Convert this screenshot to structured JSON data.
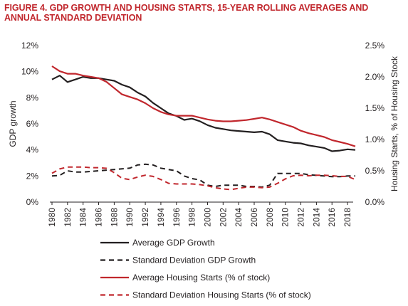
{
  "chart_data": {
    "type": "line",
    "title": "FIGURE 4. GDP GROWTH AND HOUSING STARTS, 15-YEAR ROLLING AVERAGES AND ANNUAL STANDARD DEVIATION",
    "ylabel_left": "GDP growth",
    "ylabel_right": "Housing Starts, % of Housing Stock",
    "ylim_left": [
      0,
      12
    ],
    "ylim_right": [
      0,
      2.5
    ],
    "xlim": [
      1980,
      2019
    ],
    "left_ticks": [
      0,
      2,
      4,
      6,
      8,
      10,
      12
    ],
    "left_tick_labels": [
      "0%",
      "2%",
      "4%",
      "6%",
      "8%",
      "10%",
      "12%"
    ],
    "right_ticks": [
      0,
      0.5,
      1,
      1.5,
      2,
      2.5
    ],
    "right_tick_labels": [
      "0.0%",
      "0.5%",
      "1.0%",
      "1.5%",
      "2.0%",
      "2.5%"
    ],
    "x_ticks": [
      1980,
      1982,
      1984,
      1986,
      1988,
      1990,
      1992,
      1994,
      1996,
      1998,
      2000,
      2002,
      2004,
      2006,
      2008,
      2010,
      2012,
      2014,
      2016,
      2018
    ],
    "legend_position": "bottom",
    "grid": false,
    "series": [
      {
        "name": "Average GDP Growth",
        "axis": "left",
        "color": "#231f20",
        "dash": "solid",
        "x": [
          1980,
          1981,
          1982,
          1983,
          1984,
          1985,
          1986,
          1987,
          1988,
          1989,
          1990,
          1991,
          1992,
          1993,
          1994,
          1995,
          1996,
          1997,
          1998,
          1999,
          2000,
          2001,
          2002,
          2003,
          2004,
          2005,
          2006,
          2007,
          2008,
          2009,
          2010,
          2011,
          2012,
          2013,
          2014,
          2015,
          2016,
          2017,
          2018,
          2019
        ],
        "values": [
          9.4,
          9.7,
          9.2,
          9.4,
          9.6,
          9.5,
          9.5,
          9.4,
          9.3,
          9.0,
          8.8,
          8.4,
          8.1,
          7.6,
          7.2,
          6.8,
          6.6,
          6.3,
          6.4,
          6.2,
          5.9,
          5.7,
          5.6,
          5.5,
          5.45,
          5.4,
          5.35,
          5.4,
          5.2,
          4.75,
          4.65,
          4.55,
          4.5,
          4.35,
          4.25,
          4.15,
          3.9,
          3.95,
          4.05,
          4.0
        ]
      },
      {
        "name": "Standard Deviation GDP Growth",
        "axis": "left",
        "color": "#231f20",
        "dash": "dashed",
        "x": [
          1980,
          1981,
          1982,
          1983,
          1984,
          1985,
          1986,
          1987,
          1988,
          1989,
          1990,
          1991,
          1992,
          1993,
          1994,
          1995,
          1996,
          1997,
          1998,
          1999,
          2000,
          2001,
          2002,
          2003,
          2004,
          2005,
          2006,
          2007,
          2008,
          2009,
          2010,
          2011,
          2012,
          2013,
          2014,
          2015,
          2016,
          2017,
          2018,
          2019
        ],
        "values": [
          2.0,
          2.05,
          2.4,
          2.3,
          2.3,
          2.35,
          2.4,
          2.45,
          2.5,
          2.55,
          2.6,
          2.85,
          2.9,
          2.85,
          2.6,
          2.5,
          2.4,
          2.0,
          1.8,
          1.7,
          1.3,
          1.2,
          1.3,
          1.3,
          1.3,
          1.2,
          1.2,
          1.15,
          1.3,
          2.2,
          2.2,
          2.2,
          2.2,
          2.1,
          2.05,
          2.0,
          1.95,
          1.95,
          2.0,
          2.0
        ]
      },
      {
        "name": "Average Housing Starts (% of stock)",
        "axis": "right",
        "color": "#c1272d",
        "dash": "solid",
        "x": [
          1980,
          1981,
          1982,
          1983,
          1984,
          1985,
          1986,
          1987,
          1988,
          1989,
          1990,
          1991,
          1992,
          1993,
          1994,
          1995,
          1996,
          1997,
          1998,
          1999,
          2000,
          2001,
          2002,
          2003,
          2004,
          2005,
          2006,
          2007,
          2008,
          2009,
          2010,
          2011,
          2012,
          2013,
          2014,
          2015,
          2016,
          2017,
          2018,
          2019
        ],
        "values": [
          2.17,
          2.09,
          2.05,
          2.05,
          2.02,
          2.0,
          1.98,
          1.92,
          1.82,
          1.72,
          1.68,
          1.64,
          1.58,
          1.5,
          1.44,
          1.4,
          1.38,
          1.38,
          1.38,
          1.35,
          1.32,
          1.3,
          1.29,
          1.29,
          1.3,
          1.31,
          1.33,
          1.35,
          1.32,
          1.28,
          1.24,
          1.2,
          1.14,
          1.1,
          1.07,
          1.04,
          0.99,
          0.96,
          0.93,
          0.89
        ]
      },
      {
        "name": "Standard Deviation Housing Starts (% of stock)",
        "axis": "right",
        "color": "#c1272d",
        "dash": "dashed",
        "x": [
          1980,
          1981,
          1982,
          1983,
          1984,
          1985,
          1986,
          1987,
          1988,
          1989,
          1990,
          1991,
          1992,
          1993,
          1994,
          1995,
          1996,
          1997,
          1998,
          1999,
          2000,
          2001,
          2002,
          2003,
          2004,
          2005,
          2006,
          2007,
          2008,
          2009,
          2010,
          2011,
          2012,
          2013,
          2014,
          2015,
          2016,
          2017,
          2018,
          2019
        ],
        "values": [
          0.46,
          0.53,
          0.56,
          0.56,
          0.56,
          0.55,
          0.55,
          0.54,
          0.47,
          0.38,
          0.36,
          0.4,
          0.43,
          0.41,
          0.36,
          0.3,
          0.29,
          0.29,
          0.29,
          0.28,
          0.26,
          0.23,
          0.21,
          0.2,
          0.22,
          0.24,
          0.24,
          0.23,
          0.24,
          0.3,
          0.37,
          0.42,
          0.43,
          0.42,
          0.43,
          0.43,
          0.42,
          0.41,
          0.41,
          0.36
        ]
      }
    ]
  }
}
